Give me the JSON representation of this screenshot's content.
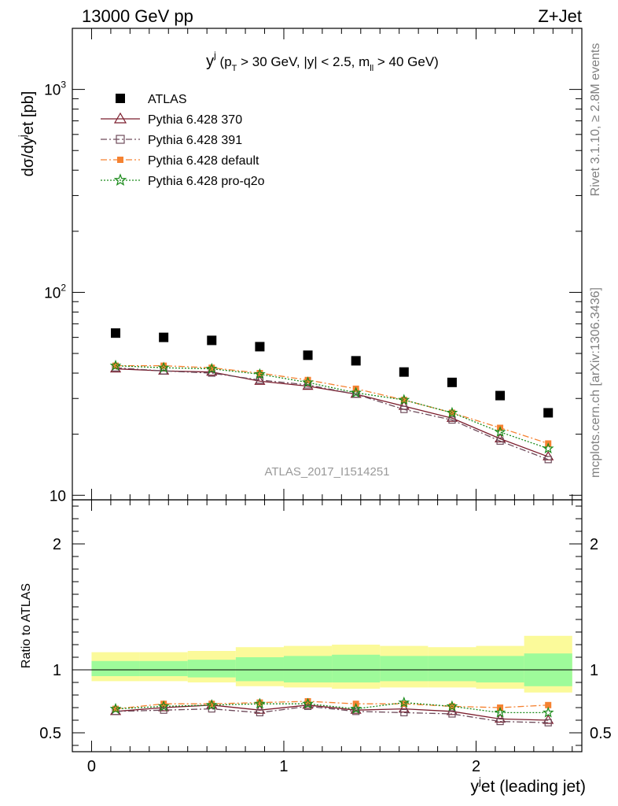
{
  "header": {
    "left": "13000 GeV pp",
    "right": "Z+Jet"
  },
  "side_labels": {
    "rivet": "Rivet 3.1.10, ≥ 2.8M events",
    "mcplots": "mcplots.cern.ch [arXiv:1306.3436]"
  },
  "chart_data": {
    "type": "scatter",
    "title": "y^j (p_T > 30 GeV, |y| < 2.5, m_ll > 40 GeV)",
    "title_parts": {
      "main": "y",
      "main_sup": "j",
      "cut_open": " (p",
      "cut_sub_t": "T",
      "cut_mid": " > 30 GeV, |y| < 2.5, m",
      "cut_sub_ll": "ll",
      "cut_close": " > 40 GeV)"
    },
    "watermark": "ATLAS_2017_I1514251",
    "xlabel_parts": {
      "main": "y",
      "sup": "j",
      "rest": "et (leading jet)"
    },
    "ylabel_parts": {
      "a": "dσ/dy",
      "sup": "j",
      "b": "et [pb]"
    },
    "ratio_ylabel": "Ratio to ATLAS",
    "xlim": [
      -0.1,
      2.55
    ],
    "ylim": [
      9.5,
      2000
    ],
    "yscale": "log",
    "ratio_ylim": [
      0.35,
      2.35
    ],
    "x_ticks": [
      0,
      1,
      2
    ],
    "x_tick_labels": [
      "0",
      "1",
      "2"
    ],
    "y_ticks": [
      10,
      100,
      1000
    ],
    "y_tick_labels": [
      "10",
      "10^2",
      "10^3"
    ],
    "ratio_ticks": [
      0.5,
      1,
      2
    ],
    "ratio_tick_labels": [
      "0.5",
      "1",
      "2"
    ],
    "legend_position": "top-left",
    "x": [
      0.125,
      0.375,
      0.625,
      0.875,
      1.125,
      1.375,
      1.625,
      1.875,
      2.125,
      2.375
    ],
    "bin_edges": [
      0.0,
      0.25,
      0.5,
      0.75,
      1.0,
      1.25,
      1.5,
      1.75,
      2.0,
      2.25,
      2.5
    ],
    "series": [
      {
        "name": "ATLAS",
        "marker": "square",
        "color": "#000000",
        "values": [
          63,
          60,
          58,
          54,
          49,
          46,
          40.5,
          36,
          31,
          25.5
        ]
      },
      {
        "name": "Pythia 6.428 370",
        "marker": "triangle-open",
        "line": "solid",
        "color": "#7b1c2c",
        "values": [
          42,
          41,
          40.5,
          36.5,
          34.5,
          31.5,
          27.5,
          24,
          19,
          15.5
        ]
      },
      {
        "name": "Pythia 6.428 391",
        "marker": "square-open",
        "line": "dashdot",
        "color": "#6e4b5b",
        "values": [
          42.5,
          41,
          40,
          37,
          35,
          31.5,
          26.5,
          23.5,
          18.5,
          15
        ]
      },
      {
        "name": "Pythia 6.428 default",
        "marker": "square",
        "line": "dashdot",
        "color": "#f58231",
        "values": [
          43.5,
          43.5,
          42.5,
          40,
          37,
          33.5,
          29.5,
          25.5,
          21.5,
          18
        ]
      },
      {
        "name": "Pythia 6.428 pro-q2o",
        "marker": "star",
        "line": "dotted",
        "color": "#1a8a1a",
        "values": [
          43.5,
          42.5,
          42,
          39.5,
          36,
          32,
          29.5,
          25.5,
          20.5,
          17
        ]
      }
    ],
    "ratio_series": [
      {
        "name": "Pythia 6.428 370",
        "values": [
          0.67,
          0.7,
          0.72,
          0.68,
          0.72,
          0.68,
          0.69,
          0.67,
          0.61,
          0.6
        ]
      },
      {
        "name": "Pythia 6.428 391",
        "values": [
          0.67,
          0.68,
          0.69,
          0.66,
          0.71,
          0.67,
          0.66,
          0.65,
          0.59,
          0.58
        ]
      },
      {
        "name": "Pythia 6.428 default",
        "values": [
          0.69,
          0.73,
          0.73,
          0.74,
          0.75,
          0.73,
          0.73,
          0.71,
          0.7,
          0.72
        ]
      },
      {
        "name": "Pythia 6.428 pro-q2o",
        "values": [
          0.69,
          0.71,
          0.72,
          0.73,
          0.73,
          0.69,
          0.74,
          0.71,
          0.66,
          0.66
        ]
      }
    ],
    "bands": {
      "outer_color": "#fbfa9a",
      "inner_color": "#9efb9a",
      "outer_lo": [
        0.91,
        0.91,
        0.9,
        0.87,
        0.86,
        0.85,
        0.86,
        0.86,
        0.85,
        0.82
      ],
      "outer_hi": [
        1.14,
        1.14,
        1.15,
        1.18,
        1.19,
        1.2,
        1.19,
        1.18,
        1.19,
        1.27
      ],
      "inner_lo": [
        0.95,
        0.95,
        0.94,
        0.91,
        0.9,
        0.9,
        0.91,
        0.91,
        0.9,
        0.87
      ],
      "inner_hi": [
        1.07,
        1.07,
        1.08,
        1.1,
        1.11,
        1.12,
        1.11,
        1.11,
        1.11,
        1.13
      ]
    }
  }
}
